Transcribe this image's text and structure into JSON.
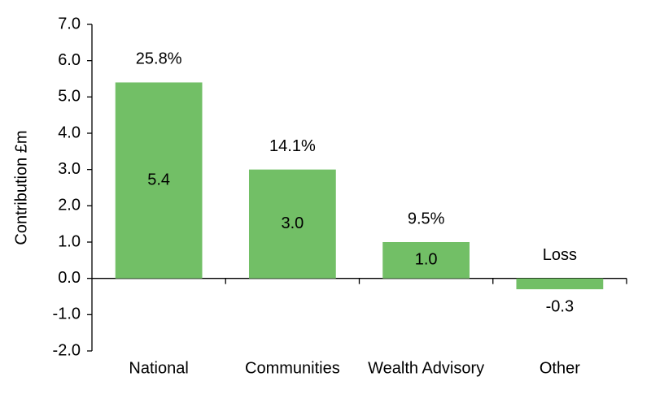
{
  "chart_data": {
    "type": "bar",
    "y_label": "Contribution £m",
    "categories": [
      "National",
      "Communities",
      "Wealth Advisory",
      "Other"
    ],
    "values": [
      5.4,
      3.0,
      1.0,
      -0.3
    ],
    "value_labels": [
      "5.4",
      "3.0",
      "1.0",
      "-0.3"
    ],
    "annotations": [
      "25.8%",
      "14.1%",
      "9.5%",
      "Loss"
    ],
    "color": "#72bf66",
    "ylim": [
      -2,
      7
    ],
    "yticks": [
      {
        "value": -2,
        "label": "-2.0"
      },
      {
        "value": -1,
        "label": "-1.0"
      },
      {
        "value": 0,
        "label": "0.0"
      },
      {
        "value": 1,
        "label": "1.0"
      },
      {
        "value": 2,
        "label": "2.0"
      },
      {
        "value": 3,
        "label": "3.0"
      },
      {
        "value": 4,
        "label": "4.0"
      },
      {
        "value": 5,
        "label": "5.0"
      },
      {
        "value": 6,
        "label": "6.0"
      },
      {
        "value": 7,
        "label": "7.0"
      }
    ],
    "grid": false
  }
}
